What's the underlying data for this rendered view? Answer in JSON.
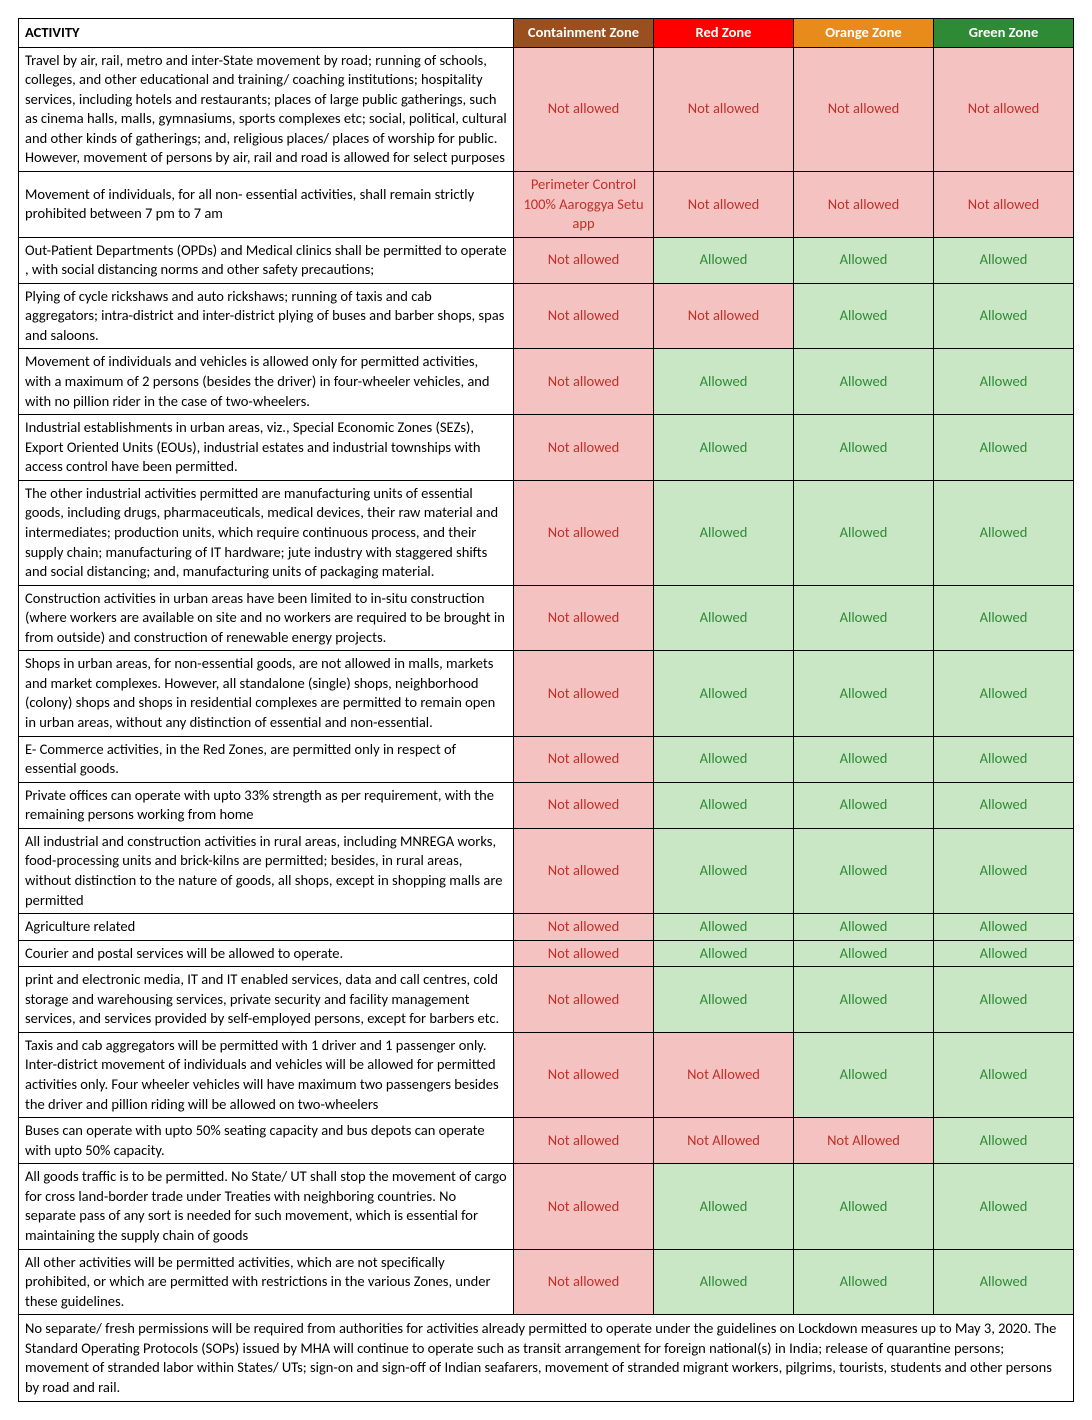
{
  "colors": {
    "header_activity_bg": "#ffffff",
    "header_activity_fg": "#000000",
    "header_containment_bg": "#9a4f1e",
    "header_red_bg": "#ff0000",
    "header_orange_bg": "#e88b1c",
    "header_green_bg": "#2f8a36",
    "header_fg": "#ffffff",
    "cell_red_bg": "#f5c2c2",
    "cell_red_fg": "#c03028",
    "cell_green_bg": "#c9e7c4",
    "cell_green_fg": "#2f8a36",
    "activity_bg": "#ffffff",
    "activity_fg": "#000000",
    "border": "#000000"
  },
  "headers": {
    "activity": "ACTIVITY",
    "containment": "Containment Zone",
    "red": "Red Zone",
    "orange": "Orange Zone",
    "green": "Green Zone"
  },
  "status": {
    "not_allowed": "Not allowed",
    "not_allowed2": "Not Allowed",
    "allowed": "Allowed",
    "perimeter": "Perimeter Control 100% Aaroggya Setu app"
  },
  "rows": [
    {
      "activity": "Travel by air, rail, metro and inter-State movement by road; running of schools, colleges, and other educational and training/ coaching institutions; hospitality services, including hotels and restaurants; places of large public gatherings, such as cinema halls, malls, gymnasiums, sports complexes etc; social, political, cultural and other kinds of gatherings; and, religious places/ places of worship for public. However, movement of persons by air, rail and road is allowed for select purposes",
      "zones": [
        "not_allowed",
        "not_allowed",
        "not_allowed",
        "not_allowed"
      ]
    },
    {
      "activity": "Movement of individuals, for all non- essential activities, shall remain strictly prohibited between 7 pm to 7 am",
      "zones": [
        "perimeter",
        "not_allowed",
        "not_allowed",
        "not_allowed"
      ]
    },
    {
      "activity": "Out-Patient Departments (OPDs) and Medical clinics shall be permitted to operate , with social distancing norms and other safety precautions;",
      "zones": [
        "not_allowed",
        "allowed",
        "allowed",
        "allowed"
      ]
    },
    {
      "activity": "Plying of cycle rickshaws and auto rickshaws; running of taxis and cab aggregators; intra-district and inter-district plying of buses and barber shops, spas and saloons.",
      "zones": [
        "not_allowed",
        "not_allowed",
        "allowed",
        "allowed"
      ]
    },
    {
      "activity": "Movement of individuals and vehicles is allowed only for permitted activities, with a maximum of 2 persons (besides the driver) in four-wheeler vehicles, and with no pillion rider in the case of two-wheelers.",
      "zones": [
        "not_allowed",
        "allowed",
        "allowed",
        "allowed"
      ]
    },
    {
      "activity": "Industrial establishments in urban areas, viz., Special Economic Zones (SEZs), Export Oriented Units (EOUs), industrial estates and industrial townships with access control have been permitted.",
      "zones": [
        "not_allowed",
        "allowed",
        "allowed",
        "allowed"
      ]
    },
    {
      "activity": "The other industrial activities permitted are manufacturing units of essential goods, including drugs, pharmaceuticals, medical devices, their raw material and intermediates; production units, which require continuous process, and their supply chain; manufacturing of IT hardware; jute industry with staggered shifts and social distancing; and, manufacturing units of packaging material.",
      "zones": [
        "not_allowed",
        "allowed",
        "allowed",
        "allowed"
      ]
    },
    {
      "activity": "Construction activities in urban areas have been limited to in-situ construction (where workers are available on site and no workers are required to be brought in from outside) and construction of renewable energy projects.",
      "zones": [
        "not_allowed",
        "allowed",
        "allowed",
        "allowed"
      ]
    },
    {
      "activity": "Shops in urban areas, for non-essential goods, are not allowed in malls, markets and market complexes. However, all standalone (single) shops, neighborhood (colony) shops and shops in residential complexes are permitted to remain open in urban areas, without any distinction of essential and non-essential.",
      "zones": [
        "not_allowed",
        "allowed",
        "allowed",
        "allowed"
      ]
    },
    {
      "activity": "E- Commerce activities, in the Red Zones, are permitted only in respect of essential goods.",
      "zones": [
        "not_allowed",
        "allowed",
        "allowed",
        "allowed"
      ]
    },
    {
      "activity": "Private offices can operate with upto 33% strength as per requirement, with the remaining persons working from home",
      "zones": [
        "not_allowed",
        "allowed",
        "allowed",
        "allowed"
      ]
    },
    {
      "activity": "All industrial and construction activities in rural areas, including MNREGA works, food-processing units and brick-kilns are permitted; besides, in rural areas, without distinction to the nature of goods, all shops, except in shopping malls are permitted",
      "zones": [
        "not_allowed",
        "allowed",
        "allowed",
        "allowed"
      ]
    },
    {
      "activity": "Agriculture related",
      "zones": [
        "not_allowed",
        "allowed",
        "allowed",
        "allowed"
      ]
    },
    {
      "activity": "Courier and postal services will be allowed to operate.",
      "zones": [
        "not_allowed",
        "allowed",
        "allowed",
        "allowed"
      ]
    },
    {
      "activity": "print and electronic media, IT and IT enabled services, data and call centres, cold storage and warehousing services, private security and facility management services, and services provided by self-employed persons, except for barbers etc.",
      "zones": [
        "not_allowed",
        "allowed",
        "allowed",
        "allowed"
      ]
    },
    {
      "activity": "Taxis and cab aggregators will be permitted with 1 driver and 1 passenger only. Inter-district movement of individuals and vehicles will be allowed for permitted activities only. Four wheeler vehicles will have maximum two passengers besides the driver and pillion riding will be allowed on two-wheelers",
      "zones": [
        "not_allowed",
        "not_allowed2",
        "allowed",
        "allowed"
      ]
    },
    {
      "activity": "Buses can operate with upto 50% seating capacity and bus depots can operate with upto 50% capacity.",
      "zones": [
        "not_allowed",
        "not_allowed2",
        "not_allowed2",
        "allowed"
      ]
    },
    {
      "activity": "All goods traffic is to be permitted.   No State/ UT shall stop the movement of cargo for cross land-border trade under Treaties with neighboring countries. No separate pass of any sort is needed for such movement, which is essential for maintaining the supply chain of goods",
      "zones": [
        "not_allowed",
        "allowed",
        "allowed",
        "allowed"
      ]
    },
    {
      "activity": "All  other  activities  will  be  permitted  activities,  which  are  not specifically  prohibited,  or  which are permitted with restrictions in the various Zones, under these guidelines.",
      "zones": [
        "not_allowed",
        "allowed",
        "allowed",
        "allowed"
      ]
    }
  ],
  "footer": "No separate/ fresh permissions will be required from authorities for activities already permitted to operate under the guidelines on Lockdown measures up to May 3, 2020. The Standard Operating Protocols (SOPs) issued by MHA will continue to operate such as transit arrangement for foreign national(s) in India; release of quarantine persons; movement of stranded labor within States/ UTs; sign-on and sign-off of Indian seafarers,  movement  of  stranded  migrant  workers,  pilgrims,  tourists, students and other persons by road and rail."
}
